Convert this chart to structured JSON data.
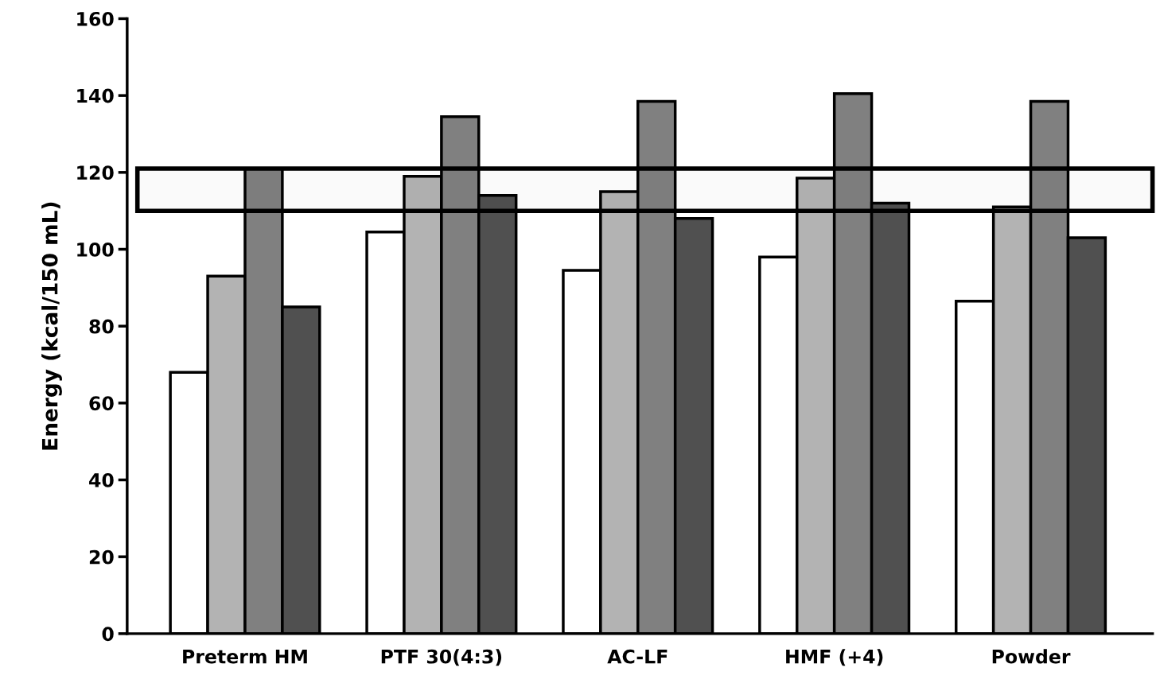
{
  "chart_data": {
    "type": "bar",
    "ylabel": "Energy (kcal/150 mL)",
    "categories": [
      "Preterm HM",
      "PTF 30(4:3)",
      "AC-LF",
      "HMF (+4)",
      "Powder"
    ],
    "series": [
      {
        "color": "#ffffff",
        "values": [
          68,
          104.5,
          94.5,
          98,
          86.5
        ]
      },
      {
        "color": "#b3b3b3",
        "values": [
          93,
          119,
          115,
          118.5,
          111
        ]
      },
      {
        "color": "#808080",
        "values": [
          121,
          134.5,
          138.5,
          140.5,
          138.5
        ]
      },
      {
        "color": "#505050",
        "values": [
          85,
          114,
          108,
          112,
          103
        ]
      }
    ],
    "ylim": [
      0,
      160
    ],
    "yticks": [
      0,
      20,
      40,
      60,
      80,
      100,
      120,
      140,
      160
    ],
    "bands": [
      {
        "axis": "y",
        "from": 110,
        "to": 121,
        "color": "#000000"
      }
    ],
    "grid": false,
    "legend": false
  }
}
